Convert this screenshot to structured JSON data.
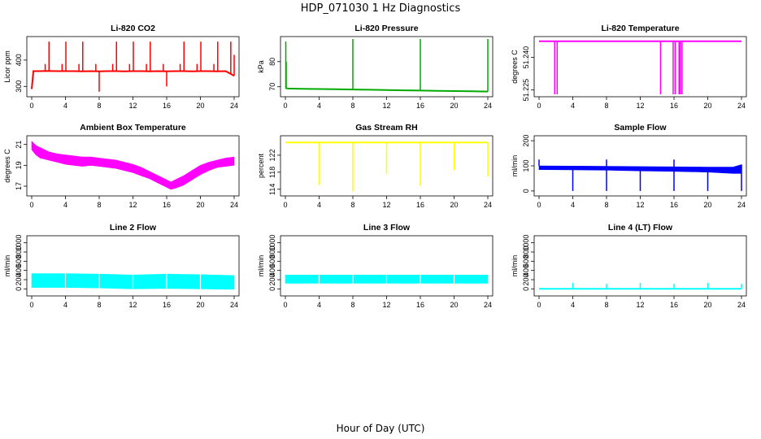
{
  "figure": {
    "title": "HDP_071030  1 Hz Diagnostics",
    "xlabel": "Hour of Day (UTC)"
  },
  "chart_data": [
    {
      "type": "line",
      "title": "Li-820 CO2",
      "ylabel": "Licor ppm",
      "color": "#ff0000",
      "style": "line",
      "xlim": [
        0,
        24
      ],
      "ylim": [
        270,
        480
      ],
      "xticks": [
        0,
        4,
        8,
        12,
        16,
        20,
        24
      ],
      "yticks": [
        300,
        400
      ],
      "series": [
        {
          "name": "CO2",
          "x": [
            0,
            0.2,
            1,
            2,
            3,
            4,
            5,
            6,
            7,
            8,
            9,
            10,
            11,
            12,
            13,
            14,
            15,
            16,
            17,
            18,
            19,
            20,
            21,
            22,
            23,
            24
          ],
          "y": [
            290,
            358,
            358,
            359,
            358,
            358,
            358,
            357,
            358,
            357,
            358,
            358,
            357,
            358,
            358,
            357,
            358,
            357,
            358,
            358,
            357,
            358,
            358,
            357,
            358,
            340
          ]
        }
      ],
      "spikes": [
        {
          "x": 1.6,
          "y": 385
        },
        {
          "x": 2.05,
          "y": 470
        },
        {
          "x": 3.6,
          "y": 385
        },
        {
          "x": 4.05,
          "y": 470
        },
        {
          "x": 5.6,
          "y": 385
        },
        {
          "x": 6.05,
          "y": 470
        },
        {
          "x": 7.6,
          "y": 385
        },
        {
          "x": 8.0,
          "y": 280
        },
        {
          "x": 9.6,
          "y": 385
        },
        {
          "x": 10.05,
          "y": 470
        },
        {
          "x": 11.6,
          "y": 385
        },
        {
          "x": 12.05,
          "y": 470
        },
        {
          "x": 13.6,
          "y": 385
        },
        {
          "x": 14.05,
          "y": 470
        },
        {
          "x": 15.6,
          "y": 385
        },
        {
          "x": 16.0,
          "y": 300
        },
        {
          "x": 17.6,
          "y": 385
        },
        {
          "x": 18.05,
          "y": 470
        },
        {
          "x": 19.6,
          "y": 385
        },
        {
          "x": 20.05,
          "y": 470
        },
        {
          "x": 21.6,
          "y": 385
        },
        {
          "x": 22.05,
          "y": 470
        },
        {
          "x": 23.6,
          "y": 470
        },
        {
          "x": 24.0,
          "y": 420
        }
      ]
    },
    {
      "type": "line",
      "title": "Li-820 Pressure",
      "ylabel": "kPa",
      "color": "#00aa00",
      "style": "line",
      "xlim": [
        0,
        24
      ],
      "ylim": [
        67,
        89
      ],
      "xticks": [
        0,
        4,
        8,
        12,
        16,
        20,
        24
      ],
      "yticks": [
        70,
        80
      ],
      "series": [
        {
          "name": "Pressure",
          "x": [
            0,
            0.3,
            2,
            4,
            6,
            8,
            10,
            12,
            14,
            16,
            18,
            20,
            22,
            24
          ],
          "y": [
            69.5,
            69.3,
            69.2,
            69.1,
            69.0,
            68.9,
            68.8,
            68.7,
            68.6,
            68.5,
            68.4,
            68.3,
            68.2,
            68.1
          ]
        }
      ],
      "spikes": [
        {
          "x": 0.05,
          "y": 88
        },
        {
          "x": 0.1,
          "y": 80
        },
        {
          "x": 8.0,
          "y": 89
        },
        {
          "x": 16.0,
          "y": 89
        },
        {
          "x": 24.0,
          "y": 89
        }
      ]
    },
    {
      "type": "line",
      "title": "Li-820 Temperature",
      "ylabel": "degrees C",
      "color": "#ff00ff",
      "style": "line",
      "xlim": [
        0,
        24
      ],
      "ylim": [
        51.223,
        51.2485
      ],
      "xticks": [
        0,
        4,
        8,
        12,
        16,
        20,
        24
      ],
      "yticks": [
        51.225,
        51.24
      ],
      "ytick_labels": [
        "51.225",
        "51.240"
      ],
      "series": [
        {
          "name": "Temperature",
          "x": [
            0,
            24
          ],
          "y": [
            51.2475,
            51.2475
          ]
        }
      ],
      "spikes": [
        {
          "x": 1.85,
          "y": 51.223
        },
        {
          "x": 2.15,
          "y": 51.223
        },
        {
          "x": 14.4,
          "y": 51.223
        },
        {
          "x": 15.9,
          "y": 51.223
        },
        {
          "x": 16.15,
          "y": 51.223
        },
        {
          "x": 16.6,
          "y": 51.223
        },
        {
          "x": 16.75,
          "y": 51.223
        },
        {
          "x": 16.95,
          "y": 51.223
        }
      ]
    },
    {
      "type": "area",
      "title": "Ambient Box Temperature",
      "ylabel": "degrees C",
      "color": "#ff00ff",
      "style": "band",
      "xlim": [
        0,
        24
      ],
      "ylim": [
        16.3,
        21.6
      ],
      "xticks": [
        0,
        4,
        8,
        12,
        16,
        20,
        24
      ],
      "yticks": [
        17,
        19,
        21
      ],
      "series": [
        {
          "name": "Box Temp",
          "x": [
            0,
            0.5,
            1,
            2,
            3,
            4,
            5,
            6,
            7,
            8,
            9,
            10,
            11,
            12,
            13,
            14,
            15,
            16,
            16.5,
            17,
            18,
            19,
            20,
            21,
            22,
            23,
            24
          ],
          "y_low": [
            20.5,
            20.0,
            19.7,
            19.5,
            19.3,
            19.1,
            19.0,
            18.9,
            19.0,
            18.9,
            18.8,
            18.7,
            18.5,
            18.3,
            18.0,
            17.7,
            17.3,
            16.9,
            16.7,
            16.8,
            17.1,
            17.6,
            18.1,
            18.5,
            18.8,
            18.9,
            19.0
          ],
          "y_high": [
            21.3,
            20.9,
            20.7,
            20.3,
            20.1,
            20.0,
            19.9,
            19.8,
            19.8,
            19.7,
            19.6,
            19.5,
            19.3,
            19.1,
            18.8,
            18.4,
            18.0,
            17.6,
            17.4,
            17.6,
            18.0,
            18.5,
            19.0,
            19.3,
            19.5,
            19.7,
            19.8
          ]
        }
      ]
    },
    {
      "type": "line",
      "title": "Gas Stream RH",
      "ylabel": "percent",
      "color": "#ffff00",
      "style": "line",
      "xlim": [
        0,
        24
      ],
      "ylim": [
        113,
        126
      ],
      "xticks": [
        0,
        4,
        8,
        12,
        16,
        20,
        24
      ],
      "yticks": [
        114,
        118,
        122
      ],
      "series": [
        {
          "name": "RH",
          "x": [
            0,
            24
          ],
          "y": [
            125.0,
            125.0
          ]
        }
      ],
      "spikes": [
        {
          "x": 4.0,
          "y": 115
        },
        {
          "x": 8.0,
          "y": 113.5
        },
        {
          "x": 12.0,
          "y": 117.5
        },
        {
          "x": 16.0,
          "y": 114.8
        },
        {
          "x": 20.0,
          "y": 118.5
        },
        {
          "x": 24.0,
          "y": 117
        }
      ]
    },
    {
      "type": "area",
      "title": "Sample Flow",
      "ylabel": "ml/min",
      "color": "#0000ff",
      "style": "band",
      "xlim": [
        0,
        24
      ],
      "ylim": [
        -10,
        210
      ],
      "xticks": [
        0,
        4,
        8,
        12,
        16,
        20,
        24
      ],
      "yticks": [
        0,
        100,
        200
      ],
      "series": [
        {
          "name": "Sample Flow",
          "x": [
            0,
            4,
            8,
            12,
            16,
            20,
            23,
            24
          ],
          "y_low": [
            85,
            84,
            83,
            80,
            78,
            75,
            70,
            70
          ],
          "y_high": [
            100,
            99,
            98,
            97,
            96,
            95,
            95,
            105
          ]
        }
      ],
      "spikes": [
        {
          "x": 0.0,
          "y": 125
        },
        {
          "x": 4.0,
          "y": 0
        },
        {
          "x": 8.0,
          "y": 0
        },
        {
          "x": 8.0,
          "y": 125
        },
        {
          "x": 12.0,
          "y": 0
        },
        {
          "x": 16.0,
          "y": 0
        },
        {
          "x": 16.0,
          "y": 125
        },
        {
          "x": 20.0,
          "y": 0
        },
        {
          "x": 24.0,
          "y": 0
        }
      ]
    },
    {
      "type": "area",
      "title": "Line 2 Flow",
      "ylabel": "ml/min",
      "color": "#00ffff",
      "style": "band",
      "xlim": [
        0,
        24
      ],
      "ylim": [
        -100,
        1100
      ],
      "xticks": [
        0,
        4,
        8,
        12,
        16,
        20,
        24
      ],
      "yticks": [
        0,
        200,
        400,
        600,
        800,
        1000
      ],
      "series": [
        {
          "name": "Line 2 Flow",
          "x": [
            0,
            4,
            8,
            12,
            16,
            20,
            24
          ],
          "y_low": [
            30,
            30,
            20,
            0,
            10,
            0,
            -10
          ],
          "y_high": [
            330,
            330,
            320,
            300,
            320,
            310,
            290
          ]
        }
      ]
    },
    {
      "type": "area",
      "title": "Line 3 Flow",
      "ylabel": "ml/min",
      "color": "#00ffff",
      "style": "band",
      "xlim": [
        0,
        24
      ],
      "ylim": [
        -100,
        1100
      ],
      "xticks": [
        0,
        4,
        8,
        12,
        16,
        20,
        24
      ],
      "yticks": [
        0,
        200,
        400,
        600,
        800,
        1000
      ],
      "series": [
        {
          "name": "Line 3 Flow",
          "x": [
            0,
            4,
            8,
            12,
            16,
            20,
            24
          ],
          "y_low": [
            120,
            120,
            120,
            120,
            120,
            120,
            120
          ],
          "y_high": [
            300,
            300,
            300,
            300,
            300,
            300,
            300
          ]
        }
      ]
    },
    {
      "type": "line",
      "title": "Line 4 (LT) Flow",
      "ylabel": "ml/min",
      "color": "#00ffff",
      "style": "line",
      "xlim": [
        0,
        24
      ],
      "ylim": [
        -100,
        1100
      ],
      "xticks": [
        0,
        4,
        8,
        12,
        16,
        20,
        24
      ],
      "yticks": [
        0,
        200,
        400,
        600,
        800,
        1000
      ],
      "series": [
        {
          "name": "Line 4 Flow",
          "x": [
            0,
            24
          ],
          "y": [
            0,
            0
          ]
        }
      ],
      "spikes": [
        {
          "x": 4.0,
          "y": 130
        },
        {
          "x": 8.0,
          "y": 110
        },
        {
          "x": 12.0,
          "y": 130
        },
        {
          "x": 16.0,
          "y": 110
        },
        {
          "x": 20.0,
          "y": 130
        },
        {
          "x": 24.0,
          "y": 110
        }
      ]
    }
  ]
}
